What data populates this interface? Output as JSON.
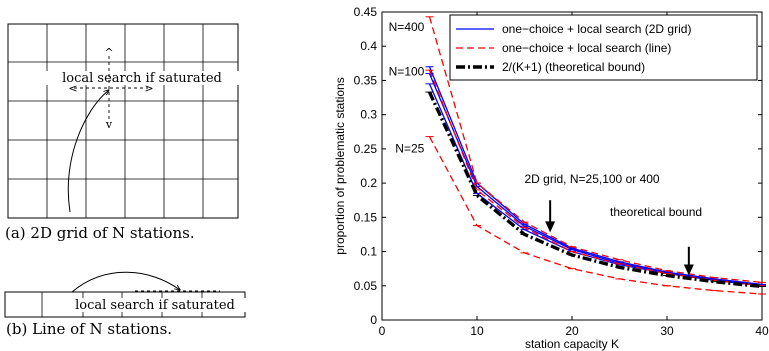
{
  "panel_a": {
    "label_text": "local search if saturated",
    "caption": "(a) 2D grid of N stations."
  },
  "panel_b": {
    "label_text": "local search if saturated",
    "caption": "(b) Line of N stations."
  },
  "chart_data": {
    "type": "line",
    "xlabel": "station capacity K",
    "ylabel": "proportion of problematic stations",
    "xlim": [
      0,
      40
    ],
    "ylim": [
      0,
      0.45
    ],
    "xticks": [
      "0",
      "10",
      "20",
      "30",
      "40"
    ],
    "yticks": [
      "0",
      "0.05",
      "0.1",
      "0.15",
      "0.2",
      "0.25",
      "0.3",
      "0.35",
      "0.4",
      "0.45"
    ],
    "grid": false,
    "legend_position": "top-right",
    "legend": [
      {
        "label": "one−choice + local search (2D grid)",
        "color": "#0000ff",
        "style": "solid"
      },
      {
        "label": "one−choice + local search (line)",
        "color": "#ff0000",
        "style": "dashed"
      },
      {
        "label": "2/(K+1) (theoretical bound)",
        "color": "#000000",
        "style": "dashdot"
      }
    ],
    "x": [
      5,
      10,
      15,
      20,
      25,
      30,
      35,
      40
    ],
    "series": [
      {
        "group": "2D grid",
        "color": "#0000ff",
        "style": "solid",
        "values": [
          0.37,
          0.2,
          0.14,
          0.105,
          0.085,
          0.07,
          0.06,
          0.052
        ]
      },
      {
        "group": "2D grid",
        "color": "#0000ff",
        "style": "solid",
        "values": [
          0.36,
          0.195,
          0.137,
          0.103,
          0.083,
          0.069,
          0.059,
          0.051
        ]
      },
      {
        "group": "2D grid",
        "color": "#0000ff",
        "style": "solid",
        "values": [
          0.345,
          0.185,
          0.132,
          0.1,
          0.081,
          0.068,
          0.058,
          0.05
        ]
      },
      {
        "group": "line",
        "color": "#ff0000",
        "style": "dashed",
        "values": [
          0.443,
          0.2,
          0.143,
          0.107,
          0.088,
          0.072,
          0.062,
          0.055
        ]
      },
      {
        "group": "line",
        "color": "#ff0000",
        "style": "dashed",
        "values": [
          0.365,
          0.19,
          0.135,
          0.1,
          0.082,
          0.068,
          0.058,
          0.05
        ]
      },
      {
        "group": "line",
        "color": "#ff0000",
        "style": "dashed",
        "values": [
          0.268,
          0.138,
          0.098,
          0.075,
          0.06,
          0.05,
          0.043,
          0.038
        ]
      },
      {
        "group": "bound",
        "color": "#000000",
        "style": "dashdot",
        "values": [
          0.333,
          0.182,
          0.125,
          0.095,
          0.077,
          0.065,
          0.056,
          0.049
        ]
      }
    ],
    "annotations": [
      {
        "text": "N=400",
        "x": 0.7,
        "y": 0.422
      },
      {
        "text": "N=100",
        "x": 0.7,
        "y": 0.357
      },
      {
        "text": "N=25",
        "x": 1.4,
        "y": 0.245
      },
      {
        "text": "2D grid, N=25,100 or 400",
        "x": 15,
        "y": 0.2
      },
      {
        "text": "theoretical bound",
        "x": 24,
        "y": 0.152
      }
    ],
    "arrows": [
      {
        "x": 17.7,
        "y_from": 0.175,
        "y_to": 0.128
      },
      {
        "x": 32.3,
        "y_from": 0.107,
        "y_to": 0.065
      }
    ]
  }
}
